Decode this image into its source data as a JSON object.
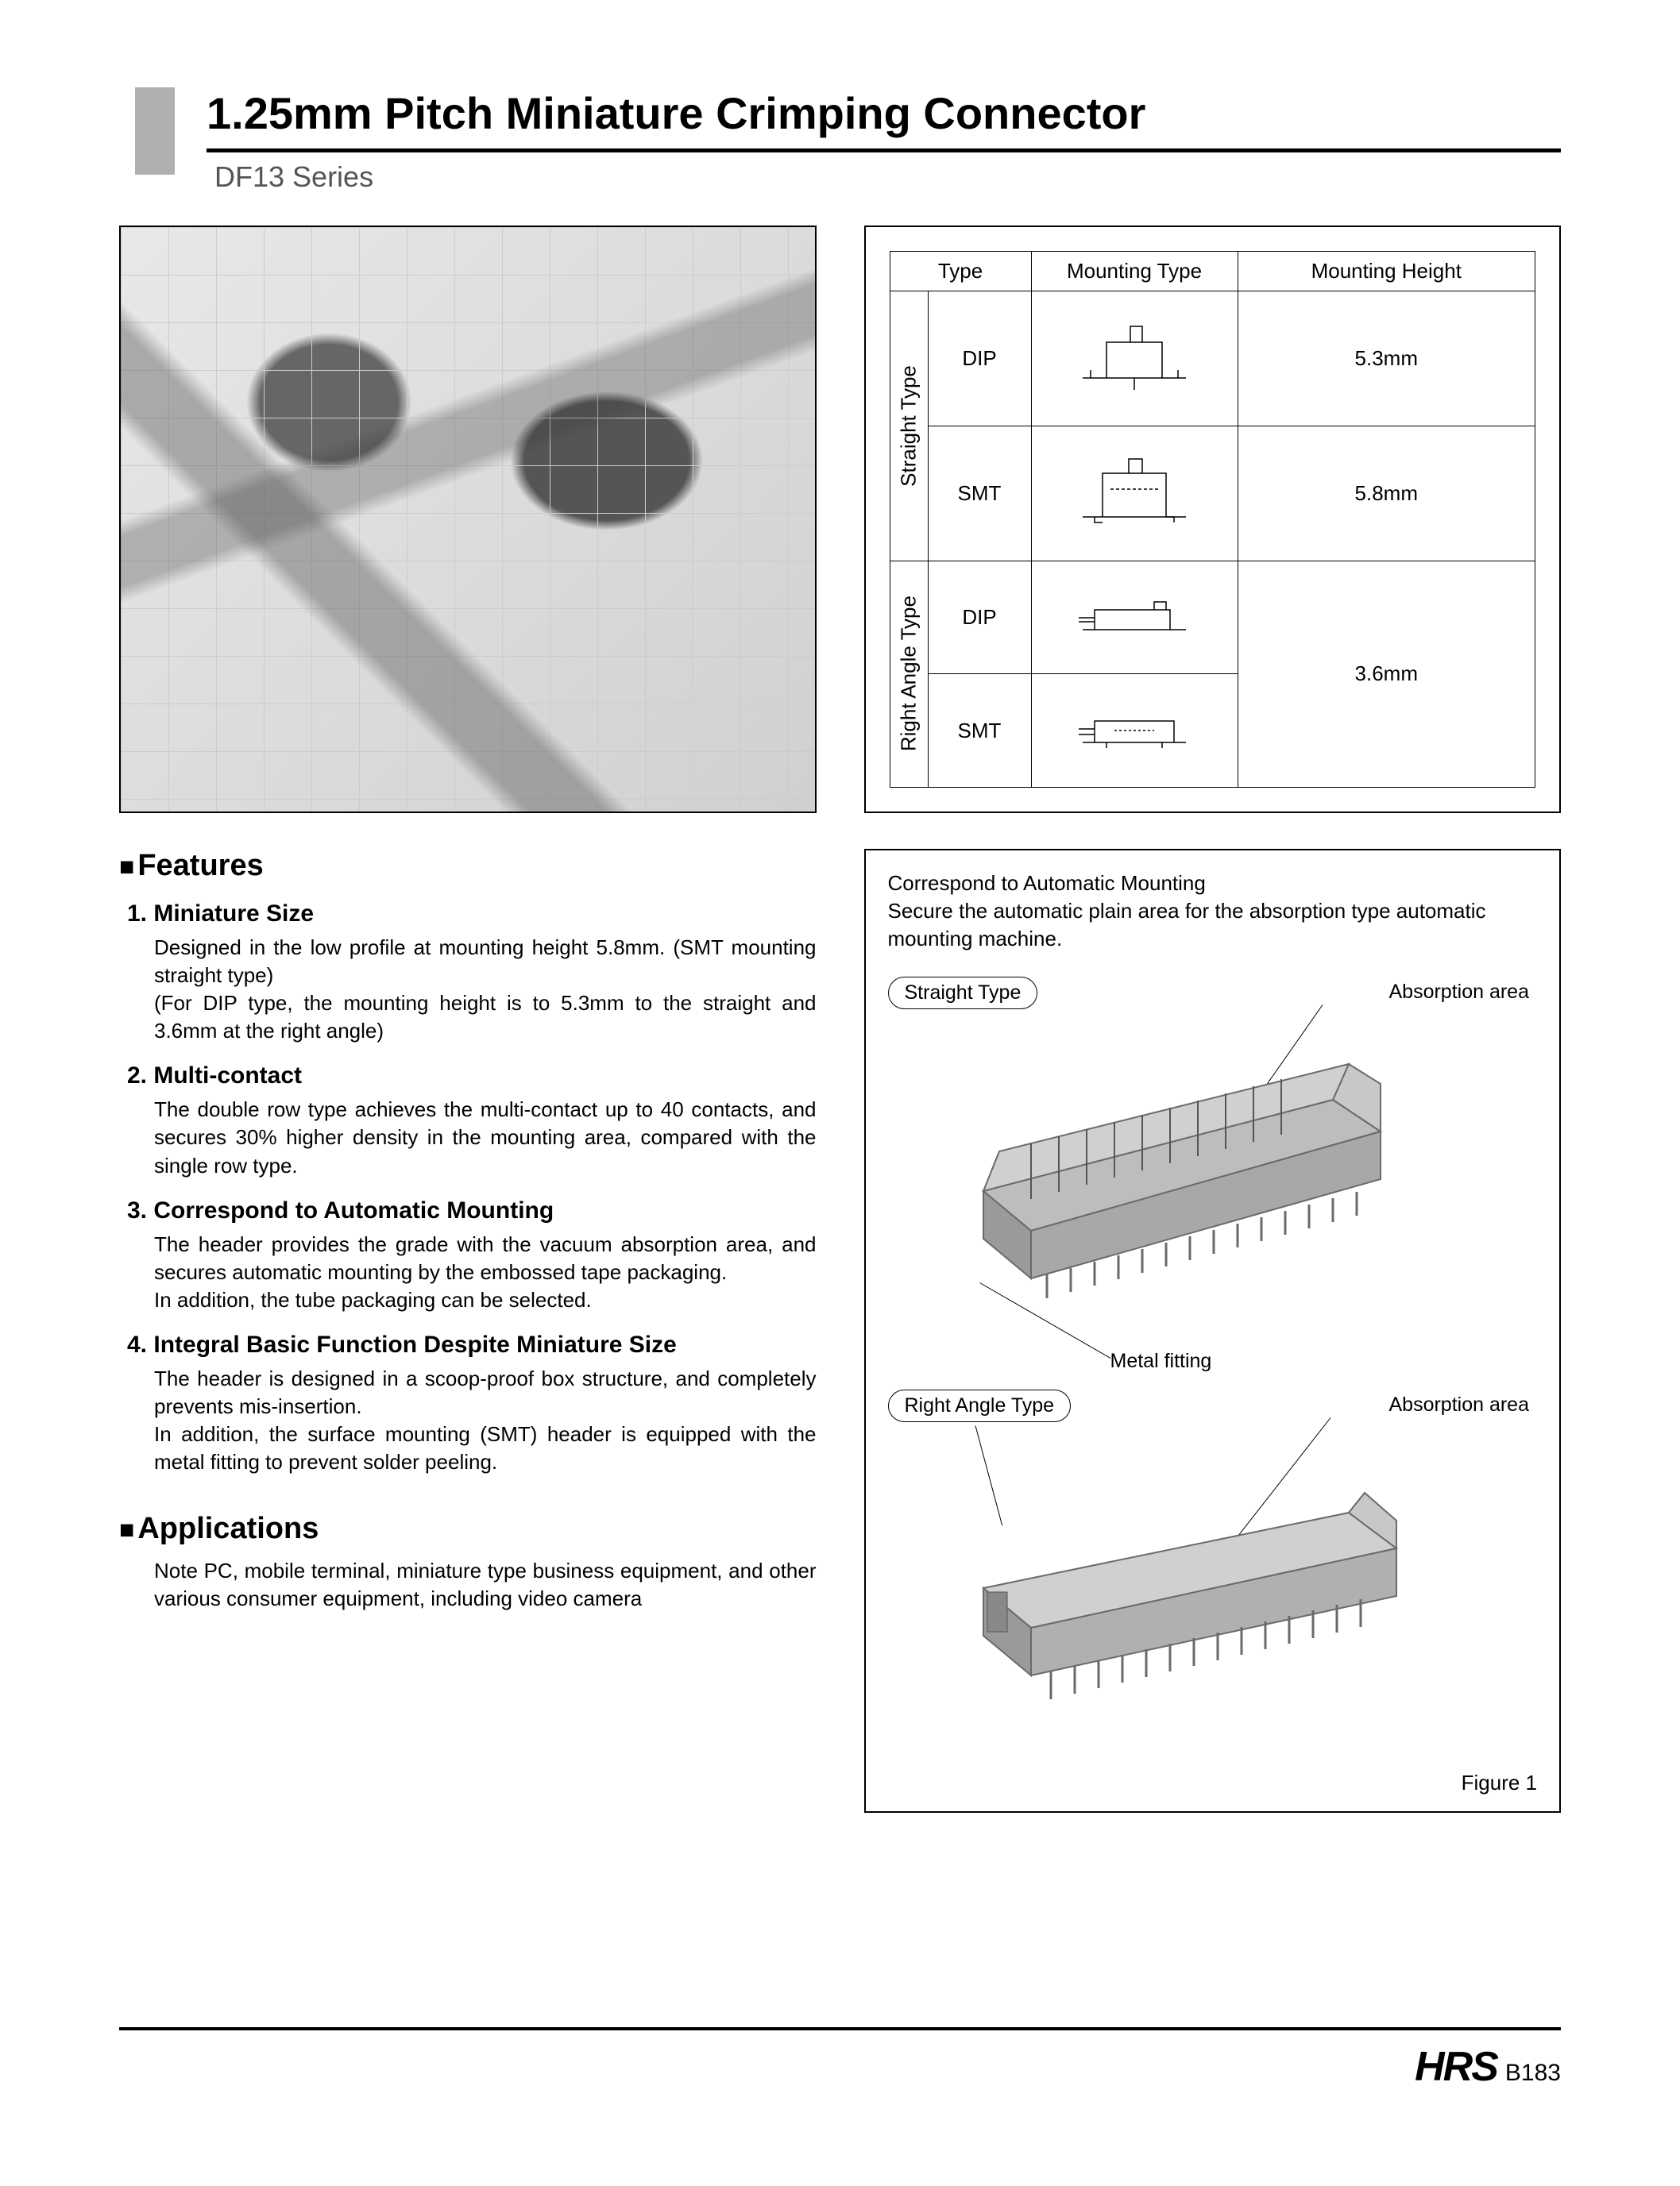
{
  "header": {
    "title": "1.25mm Pitch Miniature Crimping Connector",
    "series": "DF13 Series"
  },
  "spec_table": {
    "headers": [
      "Type",
      "Mounting Type",
      "Mounting Height"
    ],
    "groups": [
      {
        "group_label": "Straight Type",
        "rows": [
          {
            "type": "DIP",
            "height": "5.3mm"
          },
          {
            "type": "SMT",
            "height": "5.8mm"
          }
        ]
      },
      {
        "group_label": "Right Angle Type",
        "height_merged": "3.6mm",
        "rows": [
          {
            "type": "DIP"
          },
          {
            "type": "SMT"
          }
        ]
      }
    ]
  },
  "features": {
    "heading": "Features",
    "items": [
      {
        "num": "1. Miniature Size",
        "body": "Designed in the low profile at mounting height 5.8mm. (SMT mounting straight type)\n(For DIP type, the mounting height is to 5.3mm to the straight and 3.6mm at the right angle)"
      },
      {
        "num": "2. Multi-contact",
        "body": "The double row type achieves the multi-contact up to 40 contacts, and secures 30% higher density in the mounting area, compared with the single row type."
      },
      {
        "num": "3. Correspond to Automatic Mounting",
        "body": "The header provides the grade with the vacuum absorption area, and secures automatic mounting by the embossed tape packaging.\nIn addition, the tube packaging can be selected."
      },
      {
        "num": "4. Integral Basic Function Despite Miniature Size",
        "body": "The header is designed in a scoop-proof box structure, and completely prevents mis-insertion.\nIn addition, the surface mounting (SMT) header is equipped with the metal fitting to prevent solder peeling."
      }
    ]
  },
  "applications": {
    "heading": "Applications",
    "body": "Note PC, mobile terminal, miniature type business equipment, and other various consumer equipment, including video camera"
  },
  "mounting_box": {
    "intro_title": "Correspond to Automatic Mounting",
    "intro_body": "Secure the automatic plain area for the absorption type automatic mounting machine.",
    "straight_label": "Straight Type",
    "right_angle_label": "Right Angle Type",
    "absorption_label": "Absorption area",
    "metal_fitting_label": "Metal fitting",
    "figure_label": "Figure 1"
  },
  "footer": {
    "logo": "HRS",
    "page": "B183"
  },
  "colors": {
    "text": "#000000",
    "bg": "#ffffff",
    "tab": "#b0b0b0",
    "series": "#555555",
    "border": "#000000",
    "connector_body": "#bdbdbd",
    "connector_shade": "#9a9a9a",
    "connector_edge": "#6a6a6a"
  },
  "typography": {
    "title_pt": 56,
    "series_pt": 36,
    "section_pt": 38,
    "feature_num_pt": 30,
    "body_pt": 26,
    "table_pt": 26,
    "logo_pt": 52
  }
}
